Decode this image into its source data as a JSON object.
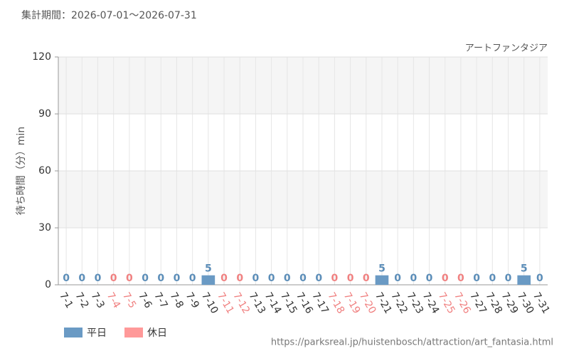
{
  "period": "集計期間：2026-07-01～2026-07-31",
  "source": "https://parksreal.jp/huistenbosch/attraction/art_fantasia.html",
  "chart_data": {
    "type": "bar",
    "subtitle": "アートファンタジア",
    "y_label": "待ち時間（分）min",
    "categories": [
      "7-1",
      "7-2",
      "7-3",
      "7-4",
      "7-5",
      "7-6",
      "7-7",
      "7-8",
      "7-9",
      "7-10",
      "7-11",
      "7-12",
      "7-13",
      "7-14",
      "7-15",
      "7-16",
      "7-17",
      "7-18",
      "7-19",
      "7-20",
      "7-21",
      "7-22",
      "7-23",
      "7-24",
      "7-25",
      "7-26",
      "7-27",
      "7-28",
      "7-29",
      "7-30",
      "7-31"
    ],
    "series": [
      {
        "name": "平日",
        "color": "#6a9ac4",
        "label_color": "#5b8db8",
        "values": [
          0,
          0,
          0,
          null,
          null,
          0,
          0,
          0,
          0,
          5,
          null,
          null,
          0,
          0,
          0,
          0,
          0,
          null,
          null,
          null,
          5,
          0,
          0,
          0,
          null,
          null,
          0,
          0,
          0,
          5,
          0
        ]
      },
      {
        "name": "休日",
        "color": "#ff9999",
        "label_color": "#f08080",
        "values": [
          null,
          null,
          null,
          0,
          0,
          null,
          null,
          null,
          null,
          null,
          0,
          0,
          null,
          null,
          null,
          null,
          null,
          0,
          0,
          0,
          null,
          null,
          null,
          null,
          0,
          0,
          null,
          null,
          null,
          null,
          null
        ]
      }
    ],
    "ylim": [
      0,
      120
    ],
    "yticks": [
      0,
      30,
      60,
      90,
      120
    ],
    "grid": true
  }
}
